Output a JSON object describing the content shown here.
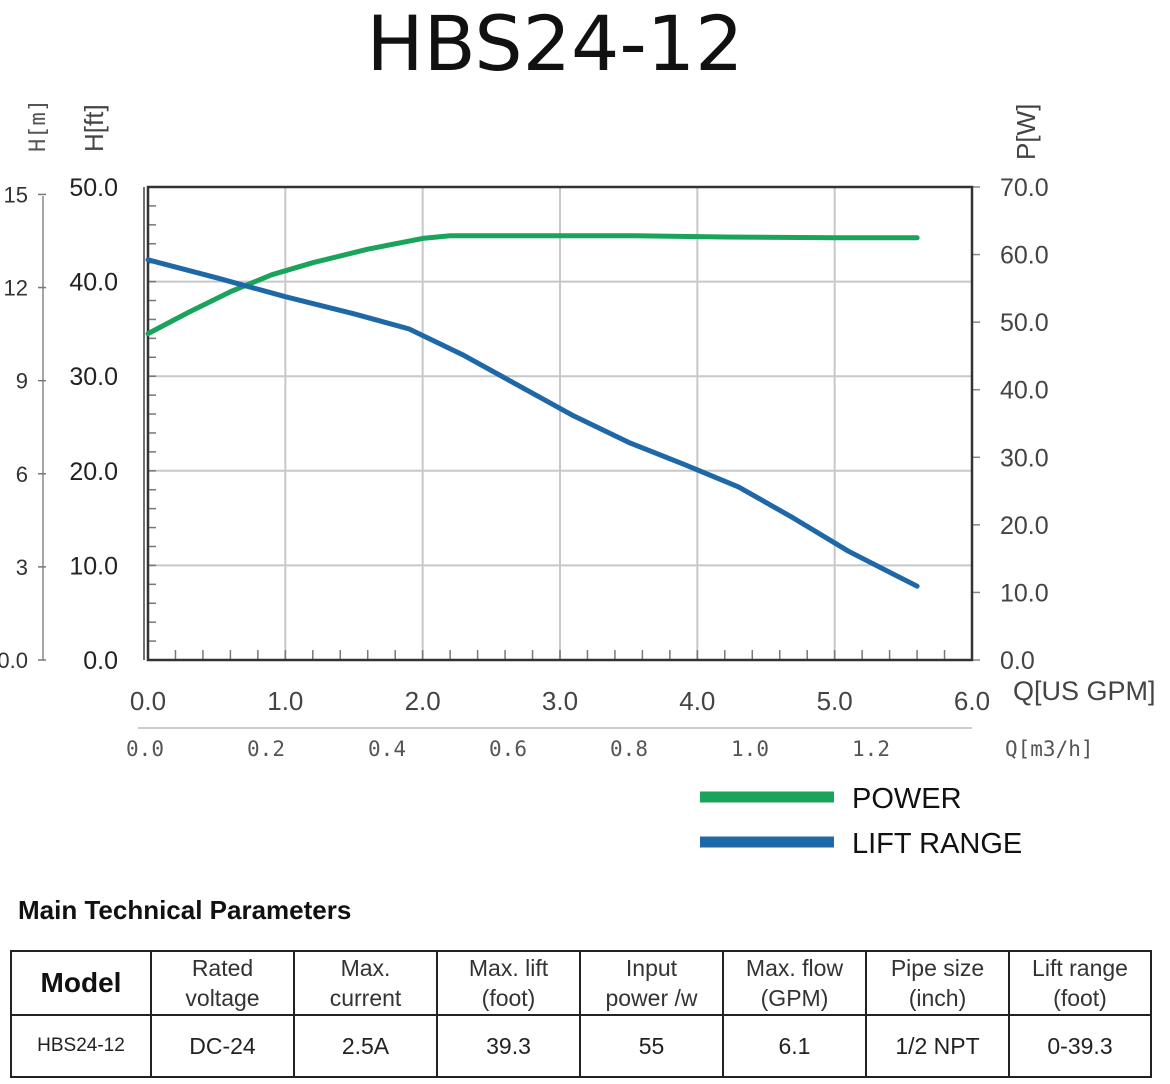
{
  "title": "HBS24-12",
  "chart_data": {
    "type": "line",
    "axes": {
      "x_bottom": {
        "label": "Q[US GPM]",
        "range": [
          0,
          6.0
        ],
        "ticks": [
          "0.0",
          "1.0",
          "2.0",
          "3.0",
          "4.0",
          "5.0",
          "6.0"
        ]
      },
      "x_secondary": {
        "label": "Q[m3/h]",
        "ticks": [
          "0.0",
          "0.2",
          "0.4",
          "0.6",
          "0.8",
          "1.0",
          "1.2"
        ]
      },
      "y_left_ft": {
        "label": "H[ft]",
        "range": [
          0,
          50
        ],
        "ticks": [
          "0.0",
          "10.0",
          "20.0",
          "30.0",
          "40.0",
          "50.0"
        ]
      },
      "y_left_m": {
        "label": "H[m]",
        "ticks": [
          "0.0",
          "3",
          "6",
          "9",
          "12",
          "15"
        ]
      },
      "y_right": {
        "label": "P[W]",
        "range": [
          0,
          70
        ],
        "ticks": [
          "0.0",
          "10.0",
          "20.0",
          "30.0",
          "40.0",
          "50.0",
          "60.0",
          "70.0"
        ]
      }
    },
    "grid": true,
    "legend_position": "bottom-right",
    "series": [
      {
        "name": "POWER",
        "color": "#1aa35a",
        "axis": "right",
        "x": [
          0.0,
          0.3,
          0.6,
          0.9,
          1.2,
          1.6,
          2.0,
          2.2,
          2.8,
          3.5,
          4.2,
          5.0,
          5.6
        ],
        "y": [
          48.3,
          51.5,
          54.5,
          57.0,
          58.8,
          60.8,
          62.4,
          62.8,
          62.8,
          62.8,
          62.6,
          62.5,
          62.5
        ]
      },
      {
        "name": "LIFT RANGE",
        "color": "#1f68a8",
        "axis": "left",
        "x": [
          0.0,
          0.5,
          1.0,
          1.5,
          1.9,
          2.3,
          2.7,
          3.1,
          3.5,
          3.9,
          4.3,
          4.7,
          5.1,
          5.6
        ],
        "y": [
          42.3,
          40.4,
          38.4,
          36.6,
          35.0,
          32.2,
          29.0,
          25.8,
          23.0,
          20.7,
          18.3,
          15.0,
          11.5,
          7.8
        ]
      }
    ]
  },
  "params": {
    "heading": "Main Technical Parameters",
    "headers": [
      [
        "Model"
      ],
      [
        "Rated",
        "voltage"
      ],
      [
        "Max.",
        "current"
      ],
      [
        "Max. lift",
        "(foot)"
      ],
      [
        "Input",
        "power /w"
      ],
      [
        "Max. flow",
        "(GPM)"
      ],
      [
        "Pipe size",
        "(inch)"
      ],
      [
        "Lift range",
        "(foot)"
      ]
    ],
    "row": [
      "HBS24-12",
      "DC-24",
      "2.5A",
      "39.3",
      "55",
      "6.1",
      "1/2 NPT",
      "0-39.3"
    ]
  }
}
